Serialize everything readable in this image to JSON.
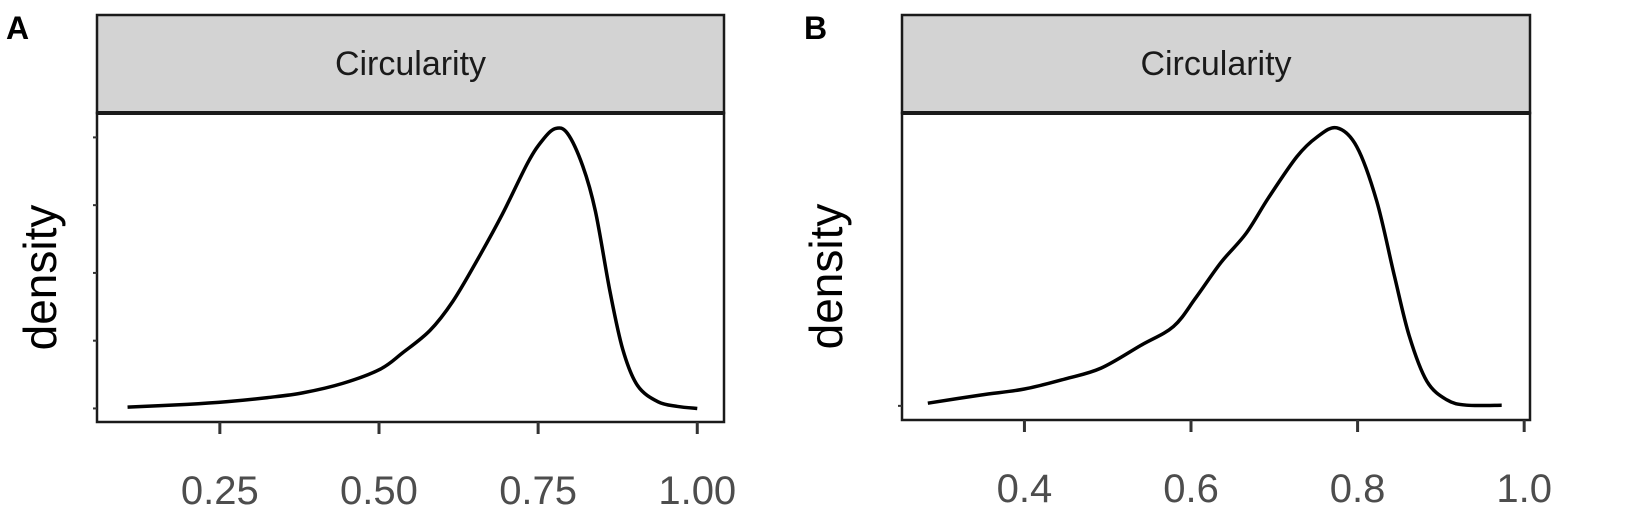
{
  "chart_data": [
    {
      "panel_label": "A",
      "type": "line",
      "strip_title": "Circularity",
      "xlabel": "",
      "ylabel": "density",
      "xlim": [
        0.057,
        1.042
      ],
      "ylim": [
        -0.2,
        4.36
      ],
      "x_ticks": [
        0.25,
        0.5,
        0.75,
        1.0
      ],
      "x_tick_labels": [
        "0.25",
        "0.50",
        "0.75",
        "1.00"
      ],
      "y_ticks": [
        0,
        1,
        2,
        3,
        4
      ],
      "y_tick_labels": [],
      "grid": false,
      "line_color": "#000000",
      "strip_color": "#d3d3d3",
      "series": [
        {
          "x": [
            0.105,
            0.199,
            0.262,
            0.325,
            0.38,
            0.443,
            0.502,
            0.537,
            0.58,
            0.616,
            0.655,
            0.694,
            0.734,
            0.757,
            0.777,
            0.796,
            0.82,
            0.84,
            0.863,
            0.883,
            0.906,
            0.938,
            0.969,
            1.0
          ],
          "y": [
            0.02,
            0.06,
            0.1,
            0.16,
            0.23,
            0.37,
            0.58,
            0.82,
            1.15,
            1.58,
            2.2,
            2.87,
            3.63,
            3.96,
            4.13,
            4.06,
            3.58,
            2.91,
            1.72,
            0.87,
            0.34,
            0.1,
            0.03,
            0.0
          ]
        }
      ]
    },
    {
      "panel_label": "B",
      "type": "line",
      "strip_title": "Circularity",
      "xlabel": "",
      "ylabel": "density",
      "xlim": [
        0.253,
        1.007
      ],
      "ylim": [
        -0.21,
        4.35
      ],
      "x_ticks": [
        0.4,
        0.6,
        0.8,
        1.0
      ],
      "x_tick_labels": [
        "0.4",
        "0.6",
        "0.8",
        "1.0"
      ],
      "y_ticks": [
        0
      ],
      "y_tick_labels": [],
      "grid": false,
      "line_color": "#000000",
      "strip_color": "#d3d3d3",
      "series": [
        {
          "x": [
            0.284,
            0.347,
            0.4,
            0.449,
            0.492,
            0.54,
            0.579,
            0.606,
            0.636,
            0.666,
            0.693,
            0.727,
            0.751,
            0.775,
            0.799,
            0.823,
            0.844,
            0.862,
            0.883,
            0.907,
            0.931,
            0.973
          ],
          "y": [
            0.04,
            0.16,
            0.25,
            0.4,
            0.56,
            0.9,
            1.18,
            1.61,
            2.13,
            2.56,
            3.09,
            3.7,
            3.99,
            4.13,
            3.85,
            3.04,
            1.94,
            1.04,
            0.37,
            0.09,
            0.01,
            0.01
          ]
        }
      ]
    }
  ]
}
